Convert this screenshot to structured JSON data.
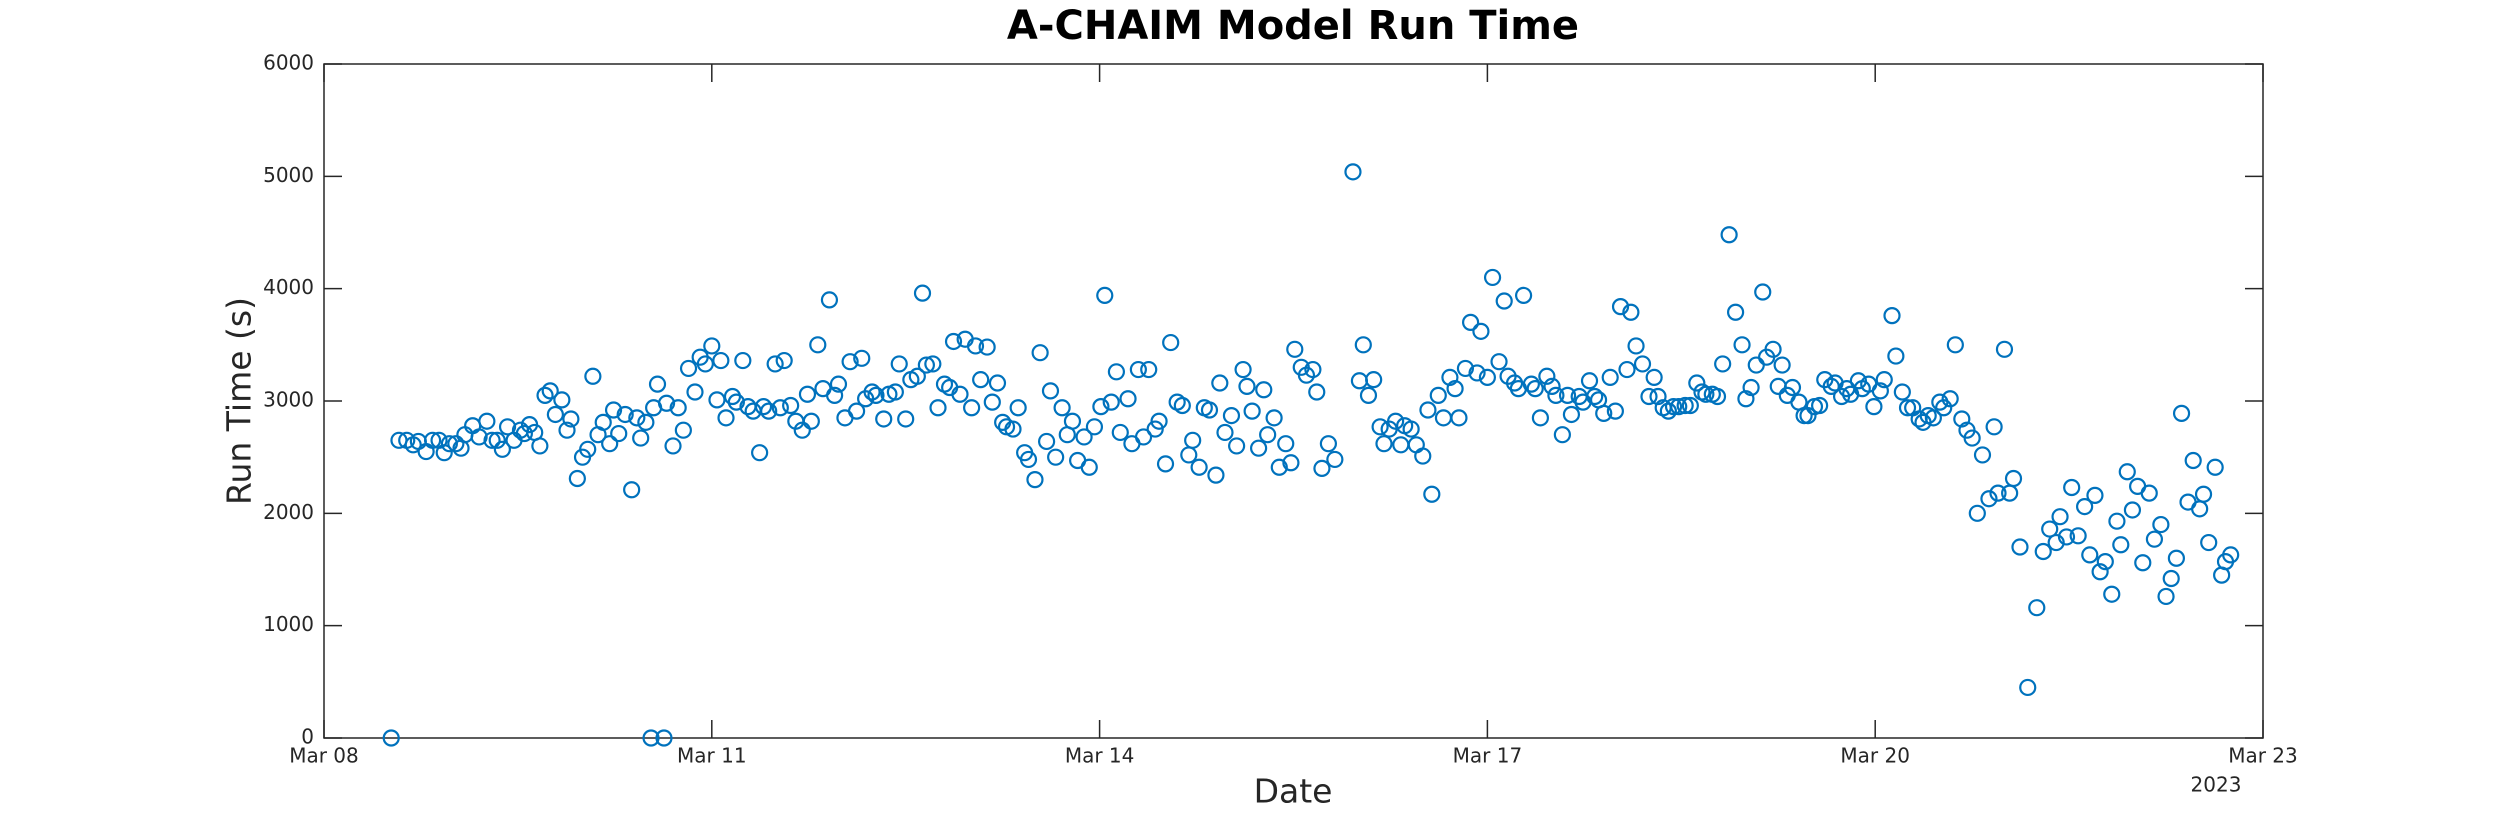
{
  "chart_data": {
    "type": "scatter",
    "title": "A-CHAIM Model Run Time",
    "x_label": "Date",
    "y_label": "Run Time (s)",
    "annotation": "2023",
    "color": "#0072bd",
    "grid": false,
    "xlim": [
      8,
      23
    ],
    "xticks": [
      {
        "value": 8,
        "label": "Mar 08"
      },
      {
        "value": 11,
        "label": "Mar 11"
      },
      {
        "value": 14,
        "label": "Mar 14"
      },
      {
        "value": 17,
        "label": "Mar 17"
      },
      {
        "value": 20,
        "label": "Mar 20"
      },
      {
        "value": 23,
        "label": "Mar 23"
      }
    ],
    "ylim": [
      0,
      6000
    ],
    "yticks": [
      0,
      1000,
      2000,
      3000,
      4000,
      5000,
      6000
    ],
    "x": [
      8.52,
      8.58,
      8.64,
      8.69,
      8.73,
      8.79,
      8.84,
      8.89,
      8.93,
      8.97,
      9.02,
      9.06,
      9.09,
      9.15,
      9.2,
      9.26,
      9.3,
      9.34,
      9.38,
      9.42,
      9.47,
      9.52,
      9.55,
      9.59,
      9.63,
      9.67,
      9.71,
      9.75,
      9.79,
      9.84,
      9.88,
      9.91,
      9.96,
      10.0,
      10.04,
      10.08,
      10.12,
      10.16,
      10.21,
      10.24,
      10.28,
      10.33,
      10.38,
      10.42,
      10.45,
      10.49,
      10.53,
      10.55,
      10.58,
      10.63,
      10.65,
      10.7,
      10.74,
      10.78,
      10.82,
      10.87,
      10.91,
      10.95,
      11.0,
      11.04,
      11.07,
      11.11,
      11.16,
      11.19,
      11.24,
      11.28,
      11.32,
      11.37,
      11.4,
      11.44,
      11.49,
      11.53,
      11.56,
      11.61,
      11.65,
      11.7,
      11.74,
      11.77,
      11.82,
      11.86,
      11.91,
      11.95,
      11.98,
      12.03,
      12.07,
      12.12,
      12.16,
      12.19,
      12.24,
      12.27,
      12.33,
      12.37,
      12.42,
      12.45,
      12.5,
      12.54,
      12.59,
      12.63,
      12.66,
      12.71,
      12.75,
      12.8,
      12.84,
      12.87,
      12.92,
      12.96,
      13.01,
      13.04,
      13.08,
      13.13,
      13.17,
      13.21,
      13.25,
      13.28,
      13.33,
      13.37,
      13.42,
      13.45,
      13.5,
      13.54,
      13.59,
      13.62,
      13.66,
      13.71,
      13.75,
      13.79,
      13.83,
      13.88,
      13.92,
      13.96,
      14.01,
      14.04,
      14.09,
      14.13,
      14.16,
      14.22,
      14.25,
      14.3,
      14.34,
      14.38,
      14.43,
      14.46,
      14.51,
      14.55,
      14.6,
      14.64,
      14.69,
      14.72,
      14.77,
      14.81,
      14.85,
      14.9,
      14.93,
      14.97,
      15.02,
      15.06,
      15.11,
      15.14,
      15.18,
      15.23,
      15.27,
      15.3,
      15.35,
      15.39,
      15.44,
      15.48,
      15.51,
      15.56,
      15.6,
      15.65,
      15.68,
      15.72,
      15.77,
      15.82,
      15.96,
      16.01,
      16.04,
      16.08,
      16.12,
      16.17,
      16.2,
      16.24,
      16.29,
      16.33,
      16.36,
      16.41,
      16.45,
      16.5,
      16.54,
      16.57,
      16.62,
      16.66,
      16.71,
      16.75,
      16.78,
      16.83,
      16.87,
      16.92,
      16.95,
      17.0,
      17.04,
      17.09,
      17.13,
      17.16,
      17.21,
      17.24,
      17.28,
      17.34,
      17.37,
      17.41,
      17.46,
      17.5,
      17.53,
      17.58,
      17.62,
      17.65,
      17.71,
      17.74,
      17.79,
      17.83,
      17.86,
      17.9,
      17.95,
      17.99,
      18.03,
      18.08,
      18.11,
      18.15,
      18.2,
      18.25,
      18.29,
      18.32,
      18.36,
      18.4,
      18.44,
      18.48,
      18.53,
      18.57,
      18.62,
      18.66,
      18.69,
      18.74,
      18.78,
      18.82,
      18.87,
      18.92,
      18.97,
      19.0,
      19.04,
      19.08,
      19.13,
      19.16,
      19.21,
      19.25,
      19.28,
      19.32,
      19.36,
      19.41,
      19.45,
      19.48,
      19.53,
      19.57,
      19.61,
      19.66,
      19.69,
      19.74,
      19.78,
      19.81,
      19.87,
      19.9,
      19.95,
      19.99,
      20.04,
      20.07,
      20.13,
      20.16,
      20.21,
      20.25,
      20.29,
      20.34,
      20.37,
      20.41,
      20.45,
      20.5,
      20.53,
      20.58,
      20.62,
      20.67,
      20.71,
      20.75,
      20.79,
      20.83,
      20.88,
      20.92,
      20.95,
      21.0,
      21.04,
      21.07,
      21.12,
      21.18,
      21.25,
      21.3,
      21.35,
      21.4,
      21.43,
      21.48,
      21.52,
      21.57,
      21.62,
      21.66,
      21.7,
      21.74,
      21.78,
      21.83,
      21.87,
      21.9,
      21.95,
      21.99,
      22.03,
      22.07,
      22.12,
      22.16,
      22.21,
      22.25,
      22.29,
      22.33,
      22.37,
      22.42,
      22.46,
      22.51,
      22.54,
      22.58,
      22.63,
      22.68,
      22.71,
      22.75
    ],
    "values": [
      0,
      2650,
      2650,
      2610,
      2640,
      2550,
      2650,
      2650,
      2540,
      2620,
      2620,
      2580,
      2700,
      2780,
      2680,
      2820,
      2650,
      2650,
      2570,
      2770,
      2650,
      2740,
      2710,
      2790,
      2720,
      2600,
      3050,
      3090,
      2880,
      3010,
      2740,
      2840,
      2310,
      2500,
      2570,
      3220,
      2700,
      2810,
      2620,
      2920,
      2710,
      2880,
      2210,
      2850,
      2670,
      2810,
      0,
      2940,
      3150,
      0,
      2980,
      2600,
      2940,
      2740,
      3290,
      3080,
      3390,
      3330,
      3490,
      3010,
      3360,
      2850,
      3040,
      2990,
      3360,
      2950,
      2910,
      2540,
      2950,
      2910,
      3330,
      2940,
      3360,
      2960,
      2820,
      2740,
      3060,
      2820,
      3500,
      3110,
      3900,
      3050,
      3150,
      2850,
      3350,
      2910,
      3380,
      3020,
      3080,
      3050,
      2840,
      3060,
      3080,
      3330,
      2840,
      3190,
      3220,
      3960,
      3320,
      3330,
      2940,
      3150,
      3120,
      3530,
      3060,
      3550,
      2940,
      3490,
      3190,
      3480,
      2990,
      3160,
      2810,
      2770,
      2750,
      2940,
      2540,
      2480,
      2300,
      3430,
      2640,
      3090,
      2500,
      2940,
      2700,
      2820,
      2470,
      2680,
      2410,
      2770,
      2950,
      3940,
      2990,
      3260,
      2720,
      3020,
      2620,
      3280,
      2680,
      3280,
      2750,
      2820,
      2440,
      3520,
      2990,
      2960,
      2520,
      2650,
      2410,
      2940,
      2920,
      2340,
      3160,
      2720,
      2870,
      2600,
      3280,
      3130,
      2910,
      2580,
      3100,
      2700,
      2850,
      2410,
      2620,
      2450,
      3460,
      3300,
      3230,
      3280,
      3080,
      2400,
      2620,
      2480,
      5040,
      3180,
      3500,
      3050,
      3190,
      2770,
      2620,
      2750,
      2820,
      2610,
      2780,
      2750,
      2610,
      2510,
      2920,
      2170,
      3050,
      2850,
      3210,
      3110,
      2850,
      3290,
      3700,
      3250,
      3620,
      3210,
      4100,
      3350,
      3890,
      3220,
      3160,
      3110,
      3940,
      3150,
      3110,
      2850,
      3220,
      3130,
      3050,
      2700,
      3050,
      2880,
      3040,
      2990,
      3180,
      3040,
      3010,
      2890,
      3210,
      2910,
      3840,
      3280,
      3790,
      3490,
      3330,
      3040,
      3210,
      3040,
      2940,
      2910,
      2950,
      2950,
      2960,
      2960,
      3160,
      3080,
      3060,
      3060,
      3040,
      3330,
      4480,
      3790,
      3500,
      3020,
      3120,
      3320,
      3970,
      3390,
      3460,
      3130,
      3320,
      3050,
      3120,
      2990,
      2870,
      2870,
      2950,
      2960,
      3190,
      3130,
      3160,
      3040,
      3110,
      3060,
      3180,
      3110,
      3150,
      2950,
      3090,
      3190,
      3760,
      3400,
      3080,
      2940,
      2940,
      2840,
      2810,
      2870,
      2850,
      2990,
      2940,
      3020,
      3500,
      2840,
      2740,
      2670,
      2000,
      2520,
      2130,
      2770,
      2180,
      3460,
      2180,
      2310,
      1700,
      450,
      1160,
      1660,
      1860,
      1740,
      1970,
      1790,
      2230,
      1800,
      2060,
      1630,
      2160,
      1480,
      1570,
      1280,
      1930,
      1720,
      2370,
      2030,
      2240,
      1560,
      2180,
      1770,
      1900,
      1260,
      1420,
      1600,
      2890,
      2100,
      2470,
      2040,
      2170,
      1740,
      2410,
      1450,
      1570,
      1630
    ]
  }
}
